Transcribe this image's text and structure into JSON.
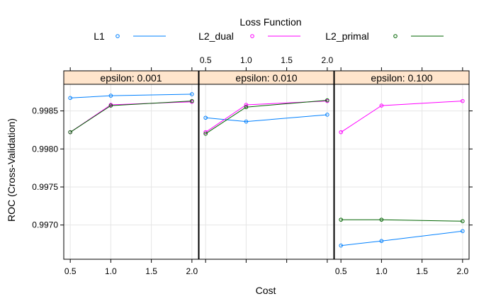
{
  "chart_data": {
    "type": "line",
    "legend": {
      "title": "Loss Function",
      "placement": "top"
    },
    "xlabel": "Cost",
    "ylabel": "ROC (Cross-Validation)",
    "x": [
      0.5,
      1.0,
      2.0
    ],
    "x_ticks": [
      "0.5",
      "1.0",
      "1.5",
      "2.0"
    ],
    "xlim": [
      0.42,
      2.08
    ],
    "y_ticks": [
      "0.9970",
      "0.9975",
      "0.9980",
      "0.9985"
    ],
    "ylim": [
      0.99655,
      0.99885
    ],
    "grid": true,
    "series_styles": [
      {
        "name": "L1",
        "color": "#0080ff"
      },
      {
        "name": "L2_dual",
        "color": "#ff00ff"
      },
      {
        "name": "L2_primal",
        "color": "#006400"
      }
    ],
    "panels": [
      {
        "strip": "epsilon: 0.001",
        "series": [
          {
            "name": "L1",
            "values": [
              0.99867,
              0.9987,
              0.99872
            ]
          },
          {
            "name": "L2_dual",
            "values": [
              0.99822,
              0.99858,
              0.99862
            ]
          },
          {
            "name": "L2_primal",
            "values": [
              0.99822,
              0.99857,
              0.99863
            ]
          }
        ]
      },
      {
        "strip": "epsilon: 0.010",
        "series": [
          {
            "name": "L1",
            "values": [
              0.99841,
              0.99836,
              0.99845
            ]
          },
          {
            "name": "L2_dual",
            "values": [
              0.99822,
              0.99858,
              0.99863
            ]
          },
          {
            "name": "L2_primal",
            "values": [
              0.9982,
              0.99855,
              0.99864
            ]
          }
        ]
      },
      {
        "strip": "epsilon: 0.100",
        "series": [
          {
            "name": "L1",
            "values": [
              0.99673,
              0.99679,
              0.99692
            ]
          },
          {
            "name": "L2_dual",
            "values": [
              0.99822,
              0.99857,
              0.99863
            ]
          },
          {
            "name": "L2_primal",
            "values": [
              0.99707,
              0.99707,
              0.99705
            ]
          }
        ]
      }
    ]
  }
}
